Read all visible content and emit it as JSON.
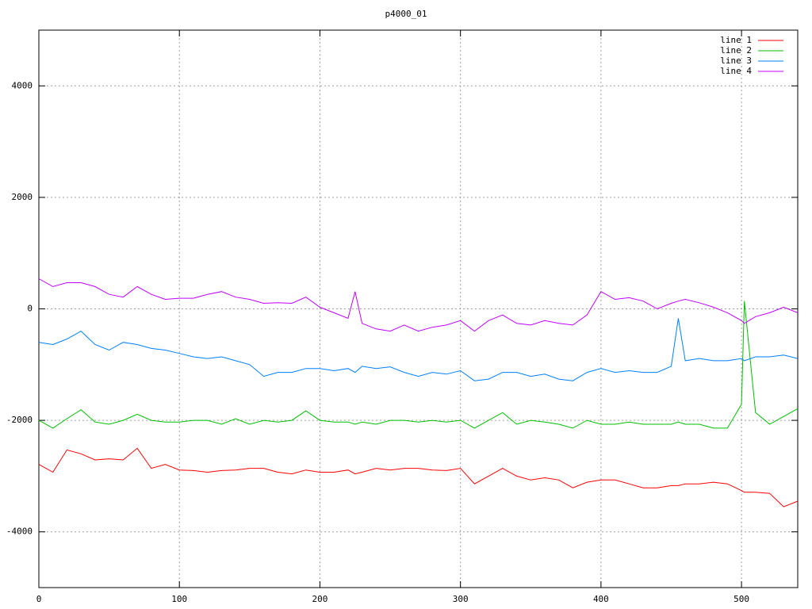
{
  "chart_data": {
    "type": "line",
    "title": "p4000_01",
    "x": [
      0,
      10,
      20,
      30,
      40,
      50,
      60,
      70,
      80,
      90,
      100,
      110,
      120,
      130,
      140,
      150,
      160,
      170,
      180,
      190,
      200,
      210,
      220,
      225,
      230,
      240,
      250,
      260,
      270,
      280,
      290,
      300,
      310,
      320,
      330,
      340,
      350,
      360,
      370,
      380,
      390,
      400,
      410,
      420,
      430,
      440,
      450,
      455,
      460,
      470,
      480,
      490,
      500,
      502,
      510,
      520,
      530,
      540
    ],
    "xlim": [
      0,
      540
    ],
    "xticks": [
      0,
      100,
      200,
      300,
      400,
      500
    ],
    "ylim": [
      -5000,
      5000
    ],
    "yticks": [
      -4000,
      -2000,
      0,
      2000,
      4000
    ],
    "grid": true,
    "legend": "top-right",
    "series": [
      {
        "name": "line 1",
        "color": "#ff0000",
        "values": [
          -2790,
          -2930,
          -2530,
          -2600,
          -2710,
          -2690,
          -2710,
          -2500,
          -2860,
          -2790,
          -2890,
          -2900,
          -2930,
          -2900,
          -2890,
          -2860,
          -2860,
          -2930,
          -2960,
          -2890,
          -2930,
          -2930,
          -2890,
          -2960,
          -2930,
          -2860,
          -2890,
          -2860,
          -2860,
          -2890,
          -2900,
          -2860,
          -3140,
          -3000,
          -2860,
          -3000,
          -3070,
          -3030,
          -3070,
          -3210,
          -3110,
          -3070,
          -3070,
          -3140,
          -3210,
          -3210,
          -3170,
          -3170,
          -3140,
          -3140,
          -3110,
          -3140,
          -3260,
          -3290,
          -3290,
          -3310,
          -3550,
          -3450
        ]
      },
      {
        "name": "line 2",
        "color": "#00c000",
        "values": [
          -2000,
          -2140,
          -1970,
          -1810,
          -2030,
          -2070,
          -2000,
          -1890,
          -2000,
          -2030,
          -2030,
          -2000,
          -2000,
          -2070,
          -1970,
          -2070,
          -2000,
          -2030,
          -2000,
          -1830,
          -2000,
          -2030,
          -2030,
          -2070,
          -2030,
          -2070,
          -2000,
          -2000,
          -2030,
          -2000,
          -2030,
          -2000,
          -2140,
          -2000,
          -1860,
          -2070,
          -2000,
          -2030,
          -2070,
          -2140,
          -2000,
          -2070,
          -2070,
          -2030,
          -2070,
          -2070,
          -2070,
          -2030,
          -2070,
          -2070,
          -2140,
          -2140,
          -1710,
          140,
          -1860,
          -2070,
          -1930,
          -1790
        ]
      },
      {
        "name": "line 3",
        "color": "#0080ff",
        "values": [
          -600,
          -640,
          -540,
          -400,
          -640,
          -740,
          -600,
          -640,
          -710,
          -740,
          -800,
          -860,
          -890,
          -860,
          -930,
          -1000,
          -1210,
          -1140,
          -1140,
          -1070,
          -1070,
          -1110,
          -1070,
          -1140,
          -1030,
          -1070,
          -1040,
          -1140,
          -1210,
          -1140,
          -1170,
          -1110,
          -1290,
          -1260,
          -1140,
          -1140,
          -1210,
          -1170,
          -1260,
          -1290,
          -1140,
          -1070,
          -1140,
          -1110,
          -1140,
          -1140,
          -1030,
          -170,
          -930,
          -890,
          -930,
          -930,
          -890,
          -930,
          -860,
          -860,
          -830,
          -890
        ]
      },
      {
        "name": "line 4",
        "color": "#c000ff",
        "values": [
          540,
          400,
          470,
          470,
          400,
          260,
          210,
          400,
          260,
          170,
          190,
          190,
          260,
          310,
          210,
          170,
          100,
          110,
          100,
          210,
          30,
          -70,
          -170,
          310,
          -260,
          -360,
          -400,
          -290,
          -400,
          -330,
          -290,
          -210,
          -400,
          -210,
          -110,
          -260,
          -290,
          -210,
          -260,
          -290,
          -110,
          310,
          170,
          200,
          140,
          0,
          100,
          140,
          170,
          110,
          30,
          -70,
          -210,
          -260,
          -140,
          -70,
          30,
          -70
        ]
      }
    ]
  }
}
